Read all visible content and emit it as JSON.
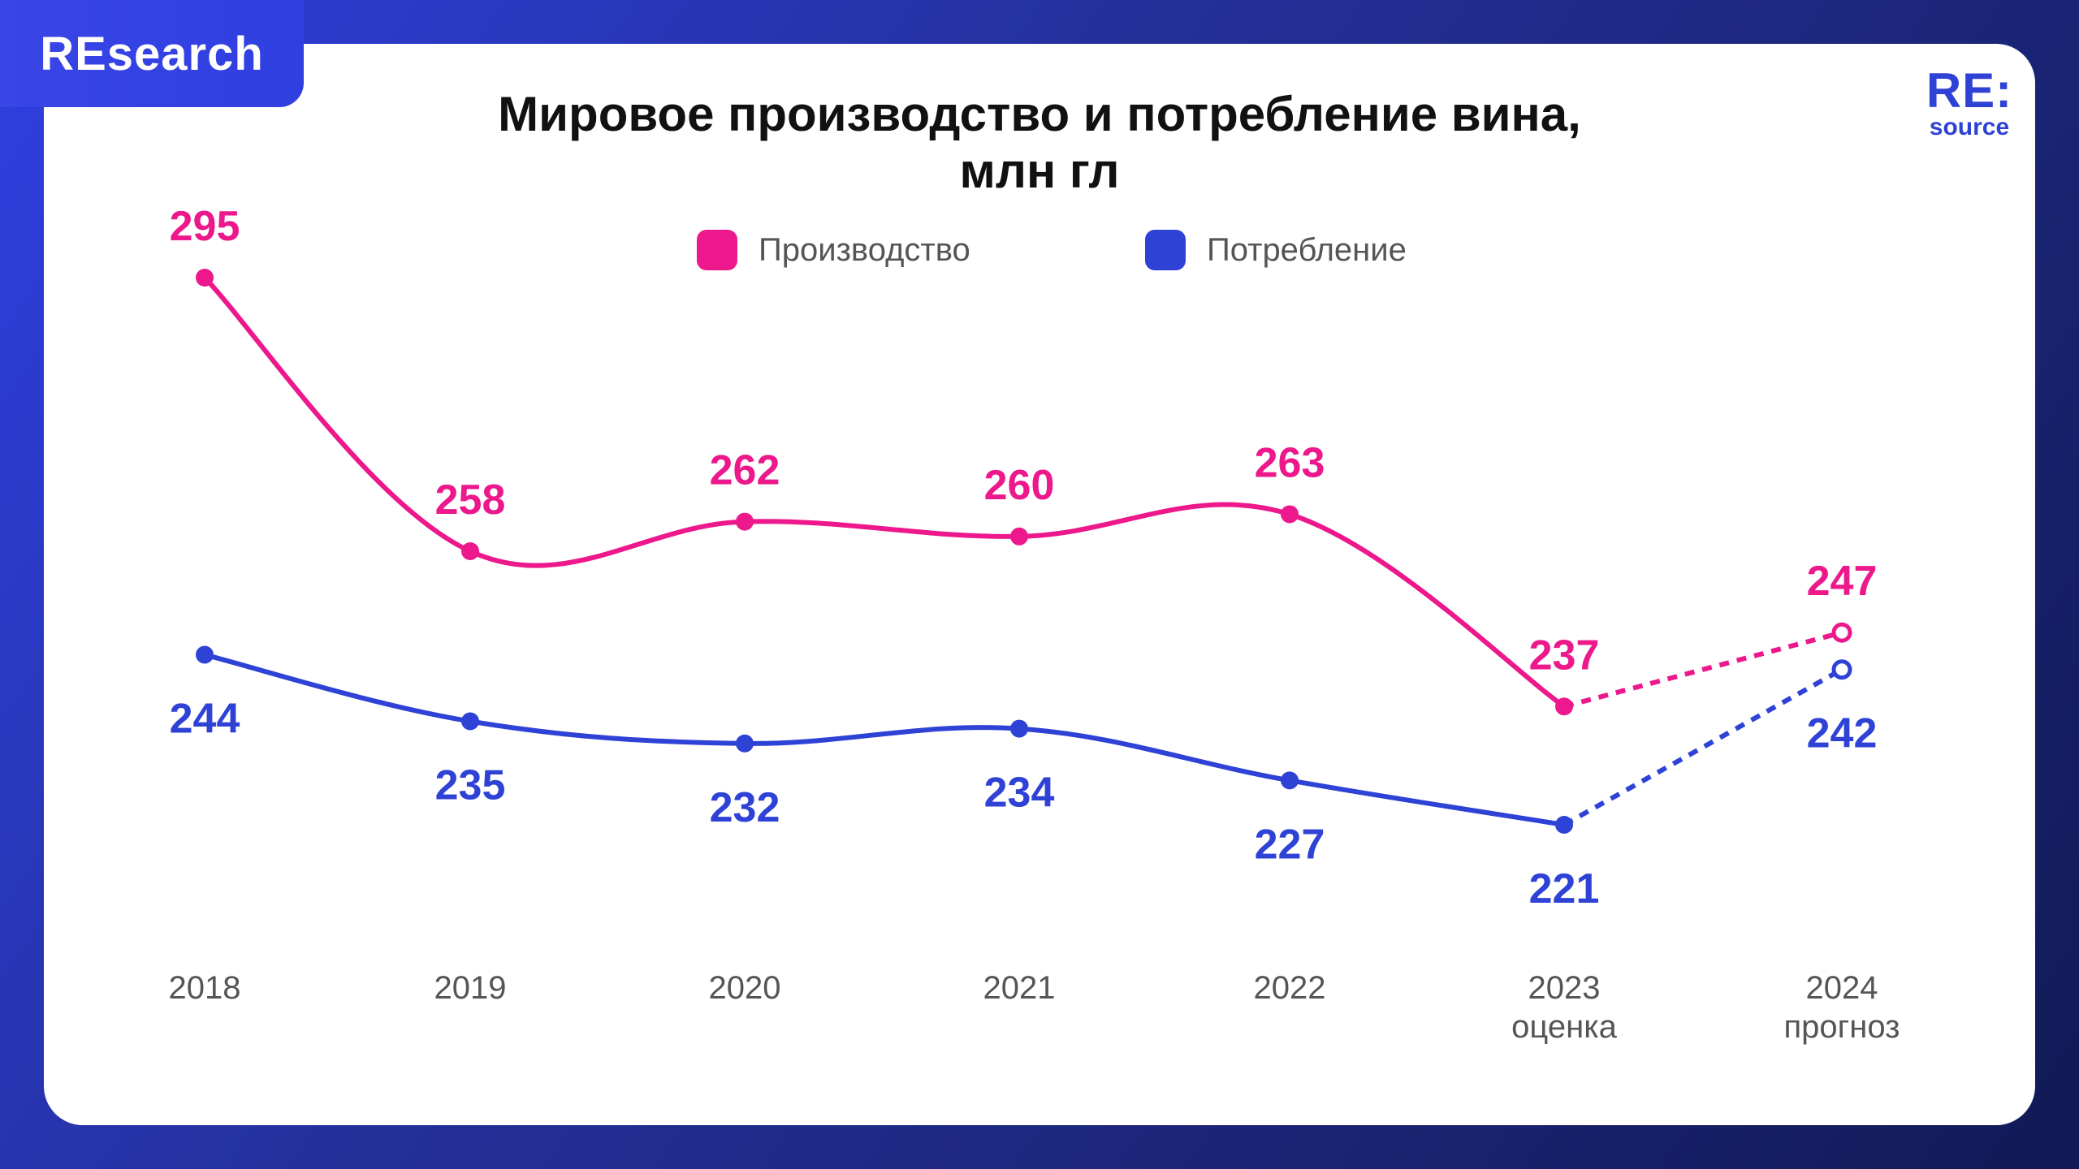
{
  "badge": {
    "label": "REsearch"
  },
  "logo": {
    "main": "RE:",
    "sub": "source"
  },
  "colors": {
    "production": "#ec188c",
    "consumption": "#2f42d6"
  },
  "chart_data": {
    "type": "line",
    "title_line1": "Мировое производство и потребление вина,",
    "title_line2": "млн гл",
    "categories": [
      {
        "year": "2018",
        "note": ""
      },
      {
        "year": "2019",
        "note": ""
      },
      {
        "year": "2020",
        "note": ""
      },
      {
        "year": "2021",
        "note": ""
      },
      {
        "year": "2022",
        "note": ""
      },
      {
        "year": "2023",
        "note": "оценка"
      },
      {
        "year": "2024",
        "note": "прогноз"
      }
    ],
    "series": [
      {
        "name": "Производство",
        "values": [
          295,
          258,
          262,
          260,
          263,
          237,
          247
        ]
      },
      {
        "name": "Потребление",
        "values": [
          244,
          235,
          232,
          234,
          227,
          221,
          242
        ]
      }
    ],
    "forecast_from_index": 5,
    "legend_position": "top-center",
    "grid": false
  }
}
